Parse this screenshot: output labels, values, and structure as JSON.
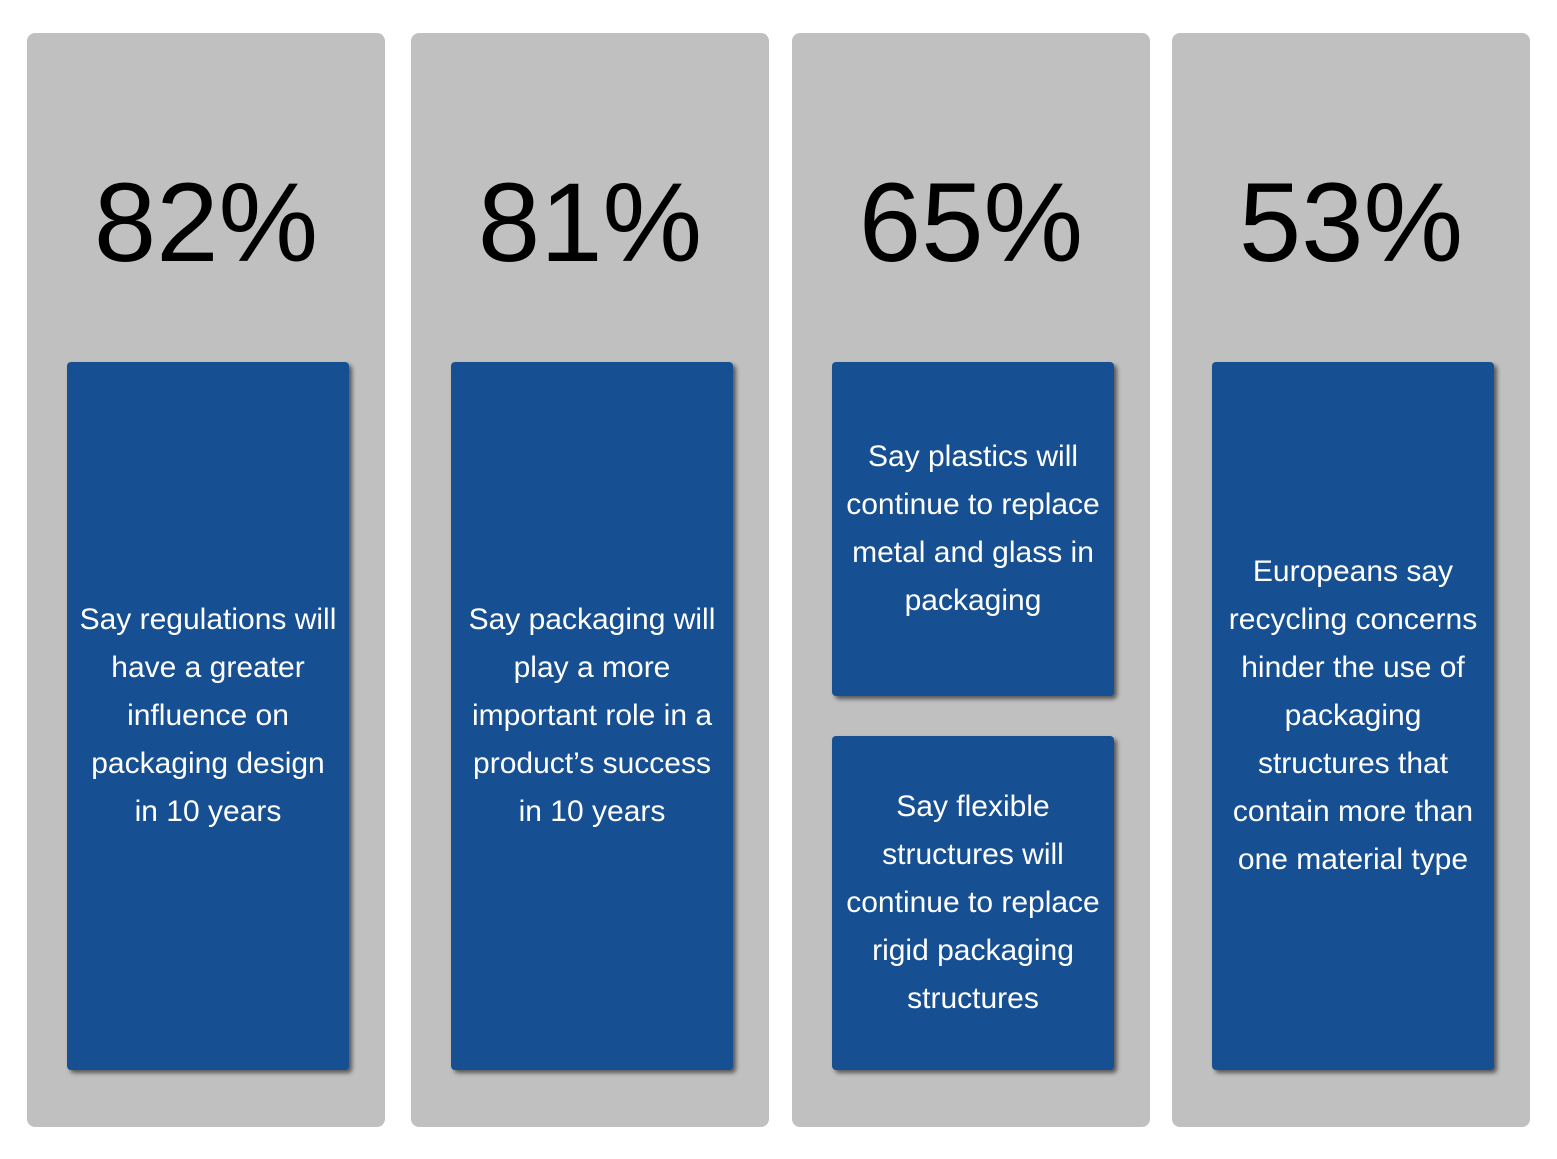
{
  "panels": [
    {
      "stat": "82%",
      "boxes": [
        "Say regulations will have a greater influence on packaging design in 10 years"
      ]
    },
    {
      "stat": "81%",
      "boxes": [
        "Say packaging will play a more important role in a product’s success in 10 years"
      ]
    },
    {
      "stat": "65%",
      "boxes": [
        "Say plastics will continue to replace metal and glass in packaging",
        "Say flexible structures will continue to replace rigid packaging structures"
      ]
    },
    {
      "stat": "53%",
      "boxes": [
        "Europeans say recycling concerns hinder the use of packaging structures that contain more than one material type"
      ]
    }
  ]
}
